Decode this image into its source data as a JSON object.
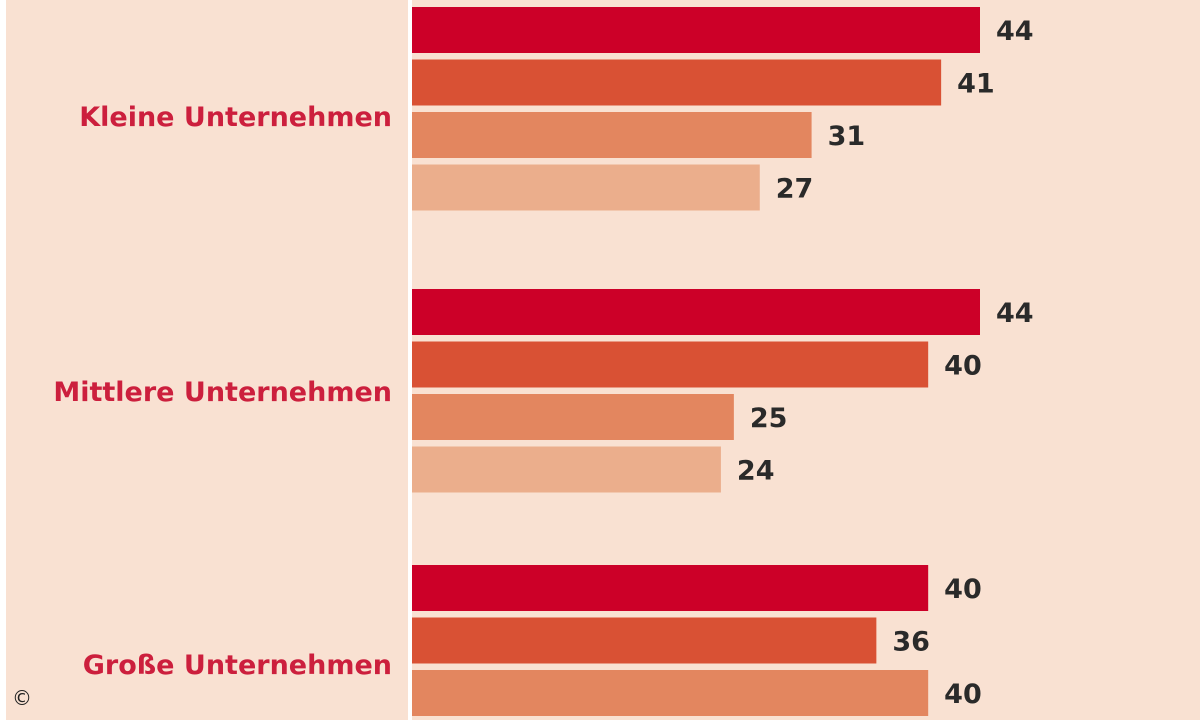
{
  "colors": {
    "background": "#f9e1d2",
    "frame": "#ffffff",
    "axis": "#ffffff",
    "category_text": "#cc1f3d",
    "value_text": "#2a2a2a",
    "copyright_text": "#222222",
    "series": [
      "#cc0028",
      "#d95134",
      "#e3865f",
      "#ebae8c"
    ]
  },
  "copyright": "©",
  "chart_data": {
    "type": "bar",
    "orientation": "horizontal",
    "title": "",
    "xlabel": "",
    "ylabel": "",
    "categories": [
      "Kleine Unternehmen",
      "Mittlere Unternehmen",
      "Große Unternehmen"
    ],
    "series": [
      {
        "values": [
          44,
          44,
          40
        ],
        "color": "#cc0028"
      },
      {
        "values": [
          41,
          40,
          36
        ],
        "color": "#d95134"
      },
      {
        "values": [
          31,
          25,
          40
        ],
        "color": "#e3865f"
      },
      {
        "values": [
          27,
          24,
          null
        ],
        "color": "#ebae8c"
      }
    ],
    "xlim": [
      0,
      44
    ],
    "grid": false,
    "legend": "none",
    "value_labels": true
  }
}
